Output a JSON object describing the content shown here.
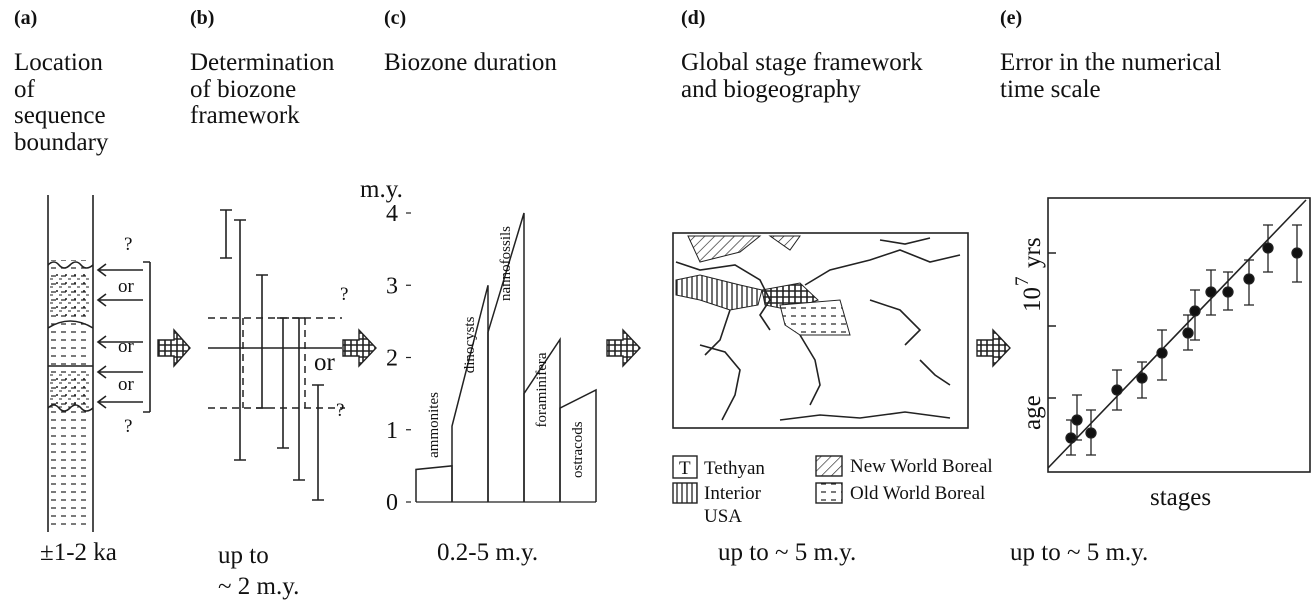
{
  "panels": [
    {
      "letter": "(a)",
      "title": [
        "Location",
        "of",
        "sequence",
        "boundary"
      ],
      "marks": [
        "?",
        "or",
        "or",
        "or",
        "?"
      ],
      "error": "±1-2 ka"
    },
    {
      "letter": "(b)",
      "title": [
        "Determination",
        "of biozone",
        "framework"
      ],
      "marks": [
        "?",
        "or",
        "?"
      ],
      "error": [
        "up to",
        "~ 2 m.y."
      ]
    },
    {
      "letter": "(c)",
      "title": [
        "Biozone duration"
      ],
      "y_label": "m.y.",
      "ylim": [
        0,
        4
      ],
      "yticks": [
        0,
        1,
        2,
        3,
        4
      ],
      "groups": [
        {
          "name": "ammonites",
          "values": [
            0.45,
            0.5
          ]
        },
        {
          "name": "dinocysts",
          "values": [
            1.05,
            3.0
          ]
        },
        {
          "name": "nannofossils",
          "values": [
            2.35,
            4.0
          ]
        },
        {
          "name": "foraminifera",
          "values": [
            1.5,
            2.25
          ]
        },
        {
          "name": "ostracods",
          "values": [
            1.3,
            1.55
          ]
        }
      ],
      "error": "0.2-5 m.y."
    },
    {
      "letter": "(d)",
      "title": [
        "Global stage framework",
        "and biogeography"
      ],
      "legend": [
        {
          "symbol": "T",
          "name": "Tethyan"
        },
        {
          "name": [
            "Interior",
            "USA"
          ]
        },
        {
          "name": "New World Boreal"
        },
        {
          "name": "Old World Boreal"
        }
      ],
      "error": "up to ~ 5 m.y."
    },
    {
      "letter": "(e)",
      "title": [
        "Error in the numerical",
        "time scale"
      ],
      "x_label": "stages",
      "y_label": "age",
      "y_unit": {
        "base": "10",
        "exponent": "7",
        "unit": "yrs"
      },
      "error": "up to ~ 5 m.y."
    }
  ]
}
